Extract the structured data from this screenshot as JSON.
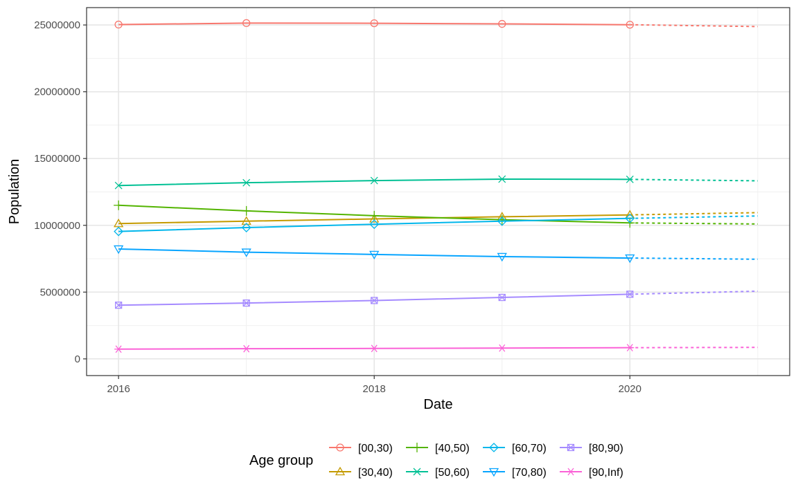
{
  "chart_data": {
    "type": "line",
    "title": "",
    "xlabel": "Date",
    "ylabel": "Population",
    "xlim": [
      2015.75,
      2021.25
    ],
    "ylim": [
      -1250000,
      26300000
    ],
    "x_ticks": [
      2016,
      2018,
      2020
    ],
    "y_ticks": [
      0,
      5000000,
      10000000,
      15000000,
      20000000,
      25000000
    ],
    "grid": true,
    "legend": {
      "title": "Age group",
      "position": "bottom"
    },
    "x": [
      2016,
      2017,
      2018,
      2019,
      2020
    ],
    "forecast_x": [
      2020,
      2021
    ],
    "series": [
      {
        "name": "[00,30)",
        "color": "#F8766D",
        "marker": "circle",
        "values": [
          25030000,
          25140000,
          25130000,
          25080000,
          25020000
        ],
        "forecast": [
          25020000,
          24880000
        ]
      },
      {
        "name": "[30,40)",
        "color": "#C49A00",
        "marker": "triangle-up",
        "values": [
          10130000,
          10310000,
          10480000,
          10640000,
          10780000
        ],
        "forecast": [
          10780000,
          10950000
        ]
      },
      {
        "name": "[40,50)",
        "color": "#53B400",
        "marker": "plus",
        "values": [
          11500000,
          11080000,
          10720000,
          10420000,
          10180000
        ],
        "forecast": [
          10180000,
          10100000
        ]
      },
      {
        "name": "[50,60)",
        "color": "#00C094",
        "marker": "x",
        "values": [
          12980000,
          13190000,
          13350000,
          13460000,
          13440000
        ],
        "forecast": [
          13440000,
          13330000
        ]
      },
      {
        "name": "[60,70)",
        "color": "#00B6EB",
        "marker": "diamond",
        "values": [
          9540000,
          9830000,
          10080000,
          10310000,
          10520000
        ],
        "forecast": [
          10520000,
          10700000
        ]
      },
      {
        "name": "[70,80)",
        "color": "#06A4FF",
        "marker": "triangle-down",
        "values": [
          8230000,
          7990000,
          7820000,
          7660000,
          7550000
        ],
        "forecast": [
          7550000,
          7460000
        ]
      },
      {
        "name": "[80,90)",
        "color": "#A58AFF",
        "marker": "square-x",
        "values": [
          4020000,
          4180000,
          4370000,
          4600000,
          4840000
        ],
        "forecast": [
          4840000,
          5070000
        ]
      },
      {
        "name": "[90,Inf)",
        "color": "#FB61D7",
        "marker": "asterisk",
        "values": [
          730000,
          760000,
          780000,
          810000,
          840000
        ],
        "forecast": [
          840000,
          860000
        ]
      }
    ]
  }
}
